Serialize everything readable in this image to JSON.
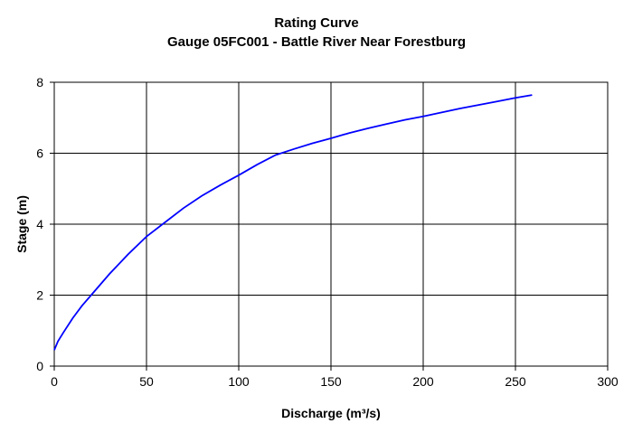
{
  "chart_data": {
    "type": "line",
    "title": "Rating Curve",
    "subtitle": "Gauge 05FC001 - Battle River Near Forestburg",
    "xlabel": "Discharge (m³/s)",
    "ylabel": "Stage (m)",
    "xlim": [
      0,
      300
    ],
    "ylim": [
      0,
      8
    ],
    "xticks": [
      0,
      50,
      100,
      150,
      200,
      250,
      300
    ],
    "yticks": [
      0,
      2,
      4,
      6,
      8
    ],
    "grid": true,
    "legend": "none",
    "series": [
      {
        "color": "#0000ff",
        "x": [
          0,
          2,
          5,
          10,
          15,
          20,
          30,
          40,
          50,
          60,
          70,
          80,
          90,
          100,
          110,
          120,
          130,
          140,
          150,
          160,
          170,
          180,
          190,
          200,
          210,
          220,
          230,
          240,
          250,
          259
        ],
        "y": [
          0.45,
          0.7,
          0.95,
          1.35,
          1.7,
          2.0,
          2.6,
          3.15,
          3.65,
          4.05,
          4.45,
          4.8,
          5.1,
          5.38,
          5.68,
          5.95,
          6.12,
          6.28,
          6.42,
          6.57,
          6.7,
          6.82,
          6.94,
          7.04,
          7.15,
          7.26,
          7.36,
          7.46,
          7.56,
          7.64
        ]
      }
    ]
  }
}
